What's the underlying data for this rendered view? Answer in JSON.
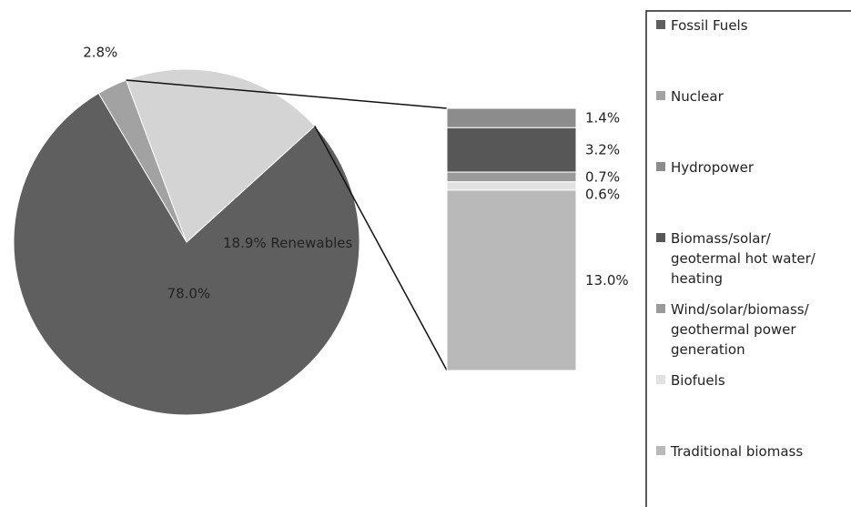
{
  "chart_data": {
    "type": "pie",
    "slices": [
      {
        "name": "Fossil Fuels",
        "value": 78.0,
        "label": "78.0%",
        "color": "#5f5f5f"
      },
      {
        "name": "Nuclear",
        "value": 2.8,
        "label": "2.8%",
        "color": "#a2a2a2"
      },
      {
        "name": "Renewables",
        "value": 18.9,
        "label": "18.9% Renewables",
        "color": "#d4d4d4"
      }
    ],
    "breakdown": {
      "of": "Renewables",
      "type": "stacked-bar",
      "segments": [
        {
          "name": "Hydropower",
          "value": 1.4,
          "label": "1.4%",
          "color": "#8c8c8c"
        },
        {
          "name": "Biomass/solar/ geotermal hot water/ heating",
          "value": 3.2,
          "label": "3.2%",
          "color": "#575757"
        },
        {
          "name": "Wind/solar/biomass/ geothermal power generation",
          "value": 0.7,
          "label": "0.7%",
          "color": "#9a9a9a"
        },
        {
          "name": "Biofuels",
          "value": 0.6,
          "label": "0.6%",
          "color": "#e2e2e2"
        },
        {
          "name": "Traditional biomass",
          "value": 13.0,
          "label": "13.0%",
          "color": "#b9b9b9"
        }
      ]
    },
    "legend": {
      "placement": "right",
      "items": [
        {
          "lines": [
            "Fossil Fuels"
          ],
          "color": "#5f5f5f"
        },
        {
          "lines": [
            "Nuclear"
          ],
          "color": "#a2a2a2"
        },
        {
          "lines": [
            "Hydropower"
          ],
          "color": "#8c8c8c"
        },
        {
          "lines": [
            "Biomass/solar/",
            "geotermal hot water/",
            "heating"
          ],
          "color": "#575757"
        },
        {
          "lines": [
            "Wind/solar/biomass/",
            "geothermal power",
            "generation"
          ],
          "color": "#9a9a9a"
        },
        {
          "lines": [
            "Biofuels"
          ],
          "color": "#e2e2e2"
        },
        {
          "lines": [
            "Traditional biomass"
          ],
          "color": "#b9b9b9"
        }
      ]
    }
  }
}
